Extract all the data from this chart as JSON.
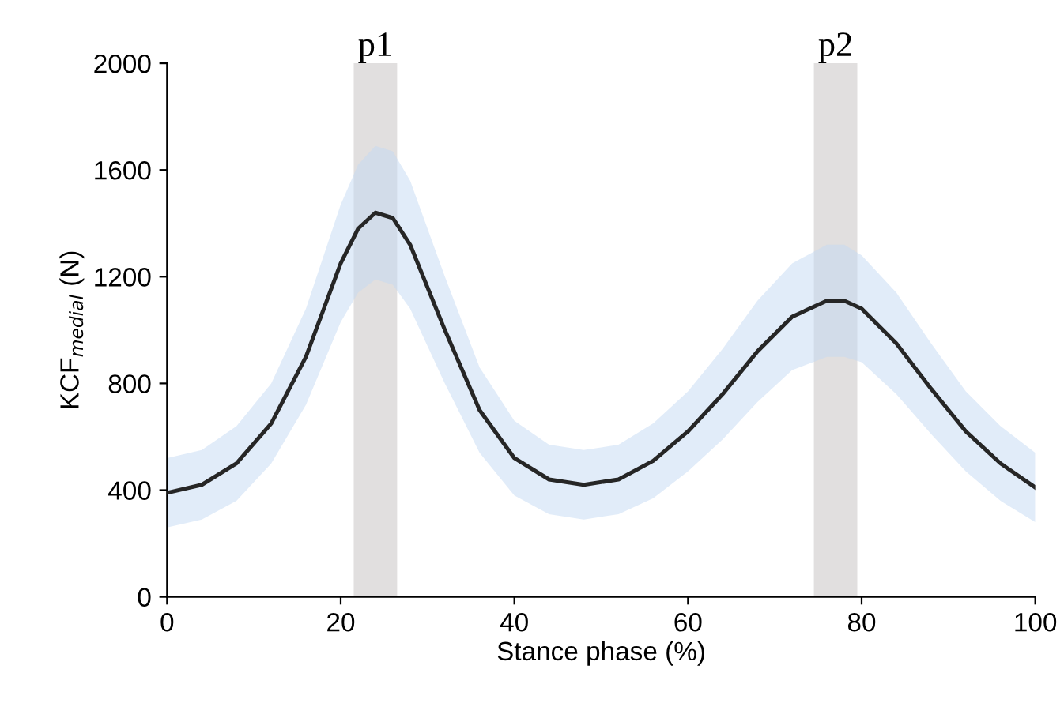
{
  "chart_data": {
    "type": "line",
    "xlabel": "Stance phase (%)",
    "ylabel": "KCF$_{medial}$ (N)",
    "xlim": [
      0,
      100
    ],
    "xticks": [
      0,
      20,
      40,
      60,
      80,
      100
    ],
    "ylim": [
      0,
      2000
    ],
    "yticks": [
      0,
      400,
      800,
      1200,
      1600,
      2000
    ],
    "grid": false,
    "legend": false,
    "marker": "none",
    "line_style": "solid",
    "series": [
      {
        "color": "#262626",
        "x": [
          0,
          4,
          8,
          12,
          16,
          20,
          22,
          24,
          26,
          28,
          32,
          36,
          40,
          44,
          48,
          52,
          56,
          60,
          64,
          68,
          72,
          76,
          78,
          80,
          84,
          88,
          92,
          96,
          100
        ],
        "values": [
          390,
          420,
          500,
          650,
          900,
          1250,
          1380,
          1440,
          1420,
          1320,
          1000,
          700,
          520,
          440,
          420,
          440,
          510,
          620,
          760,
          920,
          1050,
          1110,
          1110,
          1080,
          950,
          780,
          620,
          500,
          410
        ],
        "lower": [
          260,
          290,
          360,
          500,
          720,
          1030,
          1140,
          1190,
          1170,
          1080,
          800,
          540,
          380,
          310,
          290,
          310,
          370,
          470,
          590,
          730,
          850,
          900,
          900,
          880,
          760,
          610,
          470,
          360,
          280
        ],
        "upper": [
          520,
          550,
          640,
          800,
          1080,
          1470,
          1620,
          1690,
          1670,
          1560,
          1200,
          860,
          660,
          570,
          550,
          570,
          650,
          770,
          930,
          1110,
          1250,
          1320,
          1320,
          1280,
          1140,
          950,
          770,
          640,
          540
        ]
      }
    ],
    "bands": [
      {
        "axis": "x",
        "from": 21.5,
        "to": 26.5,
        "label": "p1",
        "color": "#e1dfdf"
      },
      {
        "axis": "x",
        "from": 74.5,
        "to": 79.5,
        "label": "p2",
        "color": "#e1dfdf"
      }
    ]
  }
}
